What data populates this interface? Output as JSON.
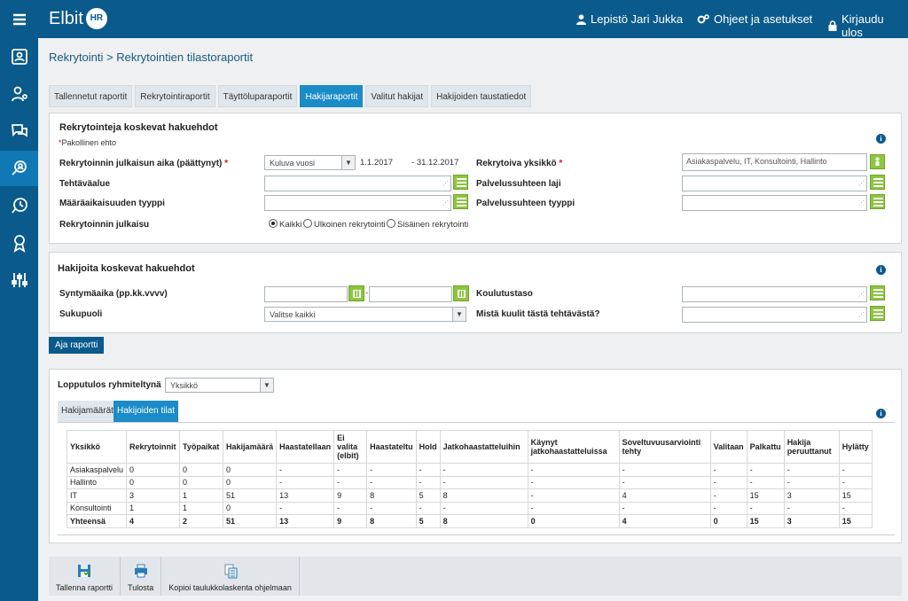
{
  "app": {
    "brand": "Elbit",
    "brand_badge": "HR"
  },
  "topbar": {
    "user": "Lepistö Jari Jukka",
    "settings": "Ohjeet ja asetukset",
    "logout": "Kirjaudu ulos"
  },
  "breadcrumb": "Rekrytointi > Rekrytointien tilastoraportit",
  "tabs": [
    "Tallennetut raportit",
    "Rekrytointiraportit",
    "Täyttöluparaportit",
    "Hakijaraportit",
    "Valitut hakijat",
    "Hakijoiden taustatiedot"
  ],
  "active_tab": "Hakijaraportit",
  "recruit_criteria": {
    "title": "Rekrytointeja koskevat hakuehdot",
    "required_note": "Pakollinen ehto",
    "publish_time_label": "Rekrytoinnin julkaisun aika (päättynyt)",
    "publish_time_value": "Kuluva vuosi",
    "date_from": "1.1.2017",
    "date_to": "31.12.2017",
    "unit_label": "Rekrytoiva yksikkö",
    "unit_value": "Asiakaspalvelu, IT, Konsultointi, Hallinto",
    "task_area_label": "Tehtäväalue",
    "service_kind_label": "Palvelussuhteen laji",
    "fixed_term_label": "Määräaikaisuuden tyyppi",
    "service_type_label": "Palvelussuhteen tyyppi",
    "publish_label": "Rekrytoinnin julkaisu",
    "publish_options": [
      "Kaikki",
      "Ulkoinen rekrytointi",
      "Sisäinen rekrytointi"
    ],
    "publish_selected": "Kaikki"
  },
  "applicant_criteria": {
    "title": "Hakijoita koskevat hakuehdot",
    "birth_label": "Syntymäaika (pp.kk.vvvv)",
    "education_label": "Koulutustaso",
    "gender_label": "Sukupuoli",
    "gender_value": "Valitse kaikki",
    "source_label": "Mistä kuulit tästä tehtävästä?"
  },
  "run_button": "Aja raportti",
  "results": {
    "group_label": "Lopputulos ryhmiteltynä",
    "group_value": "Yksikkö",
    "subtabs": [
      "Hakijamäärät",
      "Hakijoiden tilat"
    ],
    "active_subtab": "Hakijoiden tilat",
    "columns": [
      "Yksikkö",
      "Rekrytoinnit",
      "Työpaikat",
      "Hakijamäärä",
      "Haastatellaan",
      "Ei valita (elbit)",
      "Haastateltu",
      "Hold",
      "Jatkohaastatteluihin",
      "Käynyt jatkohaastatteluissa",
      "Soveltuvuusarviointi tehty",
      "Valitaan",
      "Palkattu",
      "Hakija peruuttanut",
      "Hylätty"
    ],
    "rows": [
      [
        "Asiakaspalvelu",
        "0",
        "0",
        "0",
        "-",
        "-",
        "-",
        "-",
        "-",
        "-",
        "-",
        "-",
        "-",
        "-",
        "-"
      ],
      [
        "Hallinto",
        "0",
        "0",
        "0",
        "-",
        "-",
        "-",
        "-",
        "-",
        "-",
        "-",
        "-",
        "-",
        "-",
        "-"
      ],
      [
        "IT",
        "3",
        "1",
        "51",
        "13",
        "9",
        "8",
        "5",
        "8",
        "-",
        "4",
        "-",
        "15",
        "3",
        "15"
      ],
      [
        "Konsultointi",
        "1",
        "1",
        "0",
        "-",
        "-",
        "-",
        "-",
        "-",
        "-",
        "-",
        "-",
        "-",
        "-",
        "-"
      ]
    ],
    "total": [
      "Yhteensä",
      "4",
      "2",
      "51",
      "13",
      "9",
      "8",
      "5",
      "8",
      "0",
      "4",
      "0",
      "15",
      "3",
      "15"
    ]
  },
  "footer": {
    "save": "Tallenna raportti",
    "print": "Tulosta",
    "copy": "Kopioi taulukkolaskenta ohjelmaan"
  },
  "colors": {
    "primary": "#0a5a8c",
    "accent": "#1b8cc8",
    "green": "#8cc63f",
    "required": "#dd1122"
  }
}
